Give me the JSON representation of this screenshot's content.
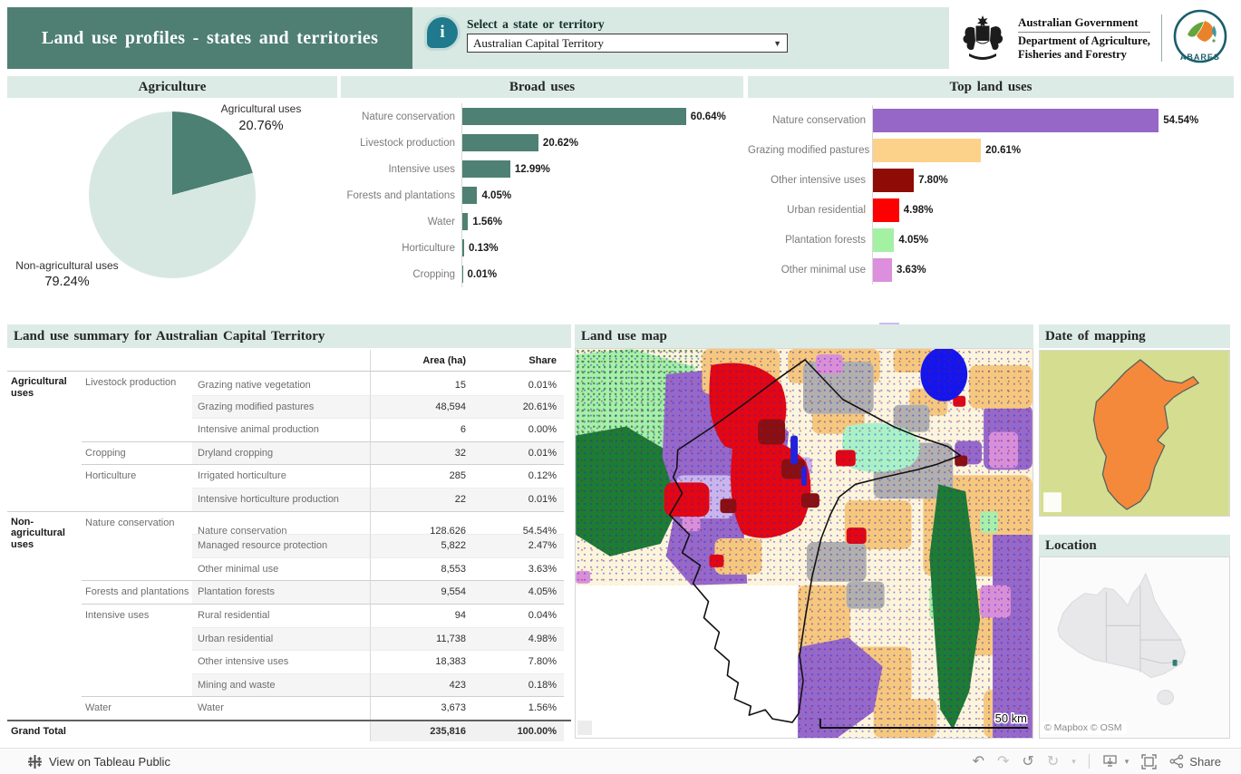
{
  "header": {
    "title": "Land use profiles - states and territories",
    "info_icon": "i",
    "selector": {
      "label": "Select a state or territory",
      "value": "Australian Capital Territory",
      "caret": "▼"
    },
    "government": {
      "line1": "Australian Government",
      "line2": "Department of Agriculture,",
      "line3": "Fisheries and Forestry"
    },
    "abares_label": "ABARES"
  },
  "agriculture": {
    "title": "Agriculture",
    "chart_data": {
      "type": "pie",
      "slices": [
        {
          "label": "Agricultural uses",
          "value": 20.76,
          "value_label": "20.76%",
          "color": "#4C8072"
        },
        {
          "label": "Non-agricultural uses",
          "value": 79.24,
          "value_label": "79.24%",
          "color": "#D7E8E2"
        }
      ]
    }
  },
  "broad_uses": {
    "title": "Broad uses",
    "chart_data": {
      "type": "bar",
      "orientation": "horizontal",
      "categories": [
        "Nature conservation",
        "Livestock production",
        "Intensive uses",
        "Forests and plantations",
        "Water",
        "Horticulture",
        "Cropping"
      ],
      "values": [
        60.64,
        20.62,
        12.99,
        4.05,
        1.56,
        0.13,
        0.01
      ],
      "labels": [
        "60.64%",
        "20.62%",
        "12.99%",
        "4.05%",
        "1.56%",
        "0.13%",
        "0.01%"
      ],
      "bar_color": "#4E8173",
      "xlim": [
        0,
        65
      ]
    }
  },
  "top_land_uses": {
    "title": "Top land uses",
    "chart_data": {
      "type": "bar",
      "orientation": "horizontal",
      "categories": [
        "Nature conservation",
        "Grazing modified pastures",
        "Other intensive uses",
        "Urban residential",
        "Plantation forests",
        "Other minimal use"
      ],
      "values": [
        54.54,
        20.61,
        7.8,
        4.98,
        4.05,
        3.63
      ],
      "labels": [
        "54.54%",
        "20.61%",
        "7.80%",
        "4.98%",
        "4.05%",
        "3.63%"
      ],
      "colors": [
        "#9767C8",
        "#FCD28A",
        "#8F0B06",
        "#FD0002",
        "#A4F1A4",
        "#DC8FDC"
      ],
      "truncated_bar_color": "#C9BCF4",
      "xlim": [
        0,
        60
      ]
    }
  },
  "summary_table": {
    "title": "Land use summary for Australian Capital Territory",
    "col_area": "Area (ha)",
    "col_share": "Share",
    "rows": [
      {
        "g1": "Agricultural uses",
        "g2": "Livestock production",
        "name": "Grazing native vegetation",
        "area": "15",
        "share": "0.01%",
        "shade": false,
        "sep": "first"
      },
      {
        "g1": "",
        "g2": "",
        "name": "Grazing modified pastures",
        "area": "48,594",
        "share": "20.61%",
        "shade": true,
        "sep": "none"
      },
      {
        "g1": "",
        "g2": "",
        "name": "Intensive animal production",
        "area": "6",
        "share": "0.00%",
        "shade": false,
        "sep": "none"
      },
      {
        "g1": "",
        "g2": "Cropping",
        "name": "Dryland cropping",
        "area": "32",
        "share": "0.01%",
        "shade": true,
        "sep": "g2"
      },
      {
        "g1": "",
        "g2": "Horticulture",
        "name": "Irrigated horticulture",
        "area": "285",
        "share": "0.12%",
        "shade": false,
        "sep": "g2"
      },
      {
        "g1": "",
        "g2": "",
        "name": "Intensive horticulture production",
        "area": "22",
        "share": "0.01%",
        "shade": true,
        "sep": "none"
      },
      {
        "g1": "Non-agricultural uses",
        "g2": "Nature conservation",
        "name": "Nature conservation",
        "area": "128,626",
        "share": "54.54%",
        "shade": false,
        "sep": "g1"
      },
      {
        "g1": "",
        "g2": "",
        "name": "Managed resource protection",
        "area": "5,822",
        "share": "2.47%",
        "shade": true,
        "sep": "none"
      },
      {
        "g1": "",
        "g2": "",
        "name": "Other minimal use",
        "area": "8,553",
        "share": "3.63%",
        "shade": false,
        "sep": "none"
      },
      {
        "g1": "",
        "g2": "Forests and plantations",
        "name": "Plantation forests",
        "area": "9,554",
        "share": "4.05%",
        "shade": true,
        "sep": "g2"
      },
      {
        "g1": "",
        "g2": "Intensive uses",
        "name": "Rural residential",
        "area": "94",
        "share": "0.04%",
        "shade": false,
        "sep": "g2"
      },
      {
        "g1": "",
        "g2": "",
        "name": "Urban residential",
        "area": "11,738",
        "share": "4.98%",
        "shade": true,
        "sep": "none"
      },
      {
        "g1": "",
        "g2": "",
        "name": "Other intensive uses",
        "area": "18,383",
        "share": "7.80%",
        "shade": false,
        "sep": "none"
      },
      {
        "g1": "",
        "g2": "",
        "name": "Mining and waste",
        "area": "423",
        "share": "0.18%",
        "shade": true,
        "sep": "none"
      },
      {
        "g1": "",
        "g2": "Water",
        "name": "Water",
        "area": "3,673",
        "share": "1.56%",
        "shade": false,
        "sep": "g2"
      }
    ],
    "grand_total": {
      "label": "Grand Total",
      "area": "235,816",
      "share": "100.00%"
    }
  },
  "land_use_map": {
    "title": "Land use map",
    "scale_label": "50 km"
  },
  "date_of_mapping": {
    "title": "Date of mapping"
  },
  "location": {
    "title": "Location",
    "attribution": "© Mapbox © OSM"
  },
  "footer": {
    "view_link": "View on Tableau Public",
    "share_label": "Share"
  },
  "colors": {
    "banner_green": "#4E7F72",
    "panel_header_mint": "#DCEBE6",
    "selector_mint": "#D8E8E2",
    "teal_bar": "#4E8173",
    "dom_background": "#D5DD90",
    "dom_shape": "#F5893B"
  }
}
